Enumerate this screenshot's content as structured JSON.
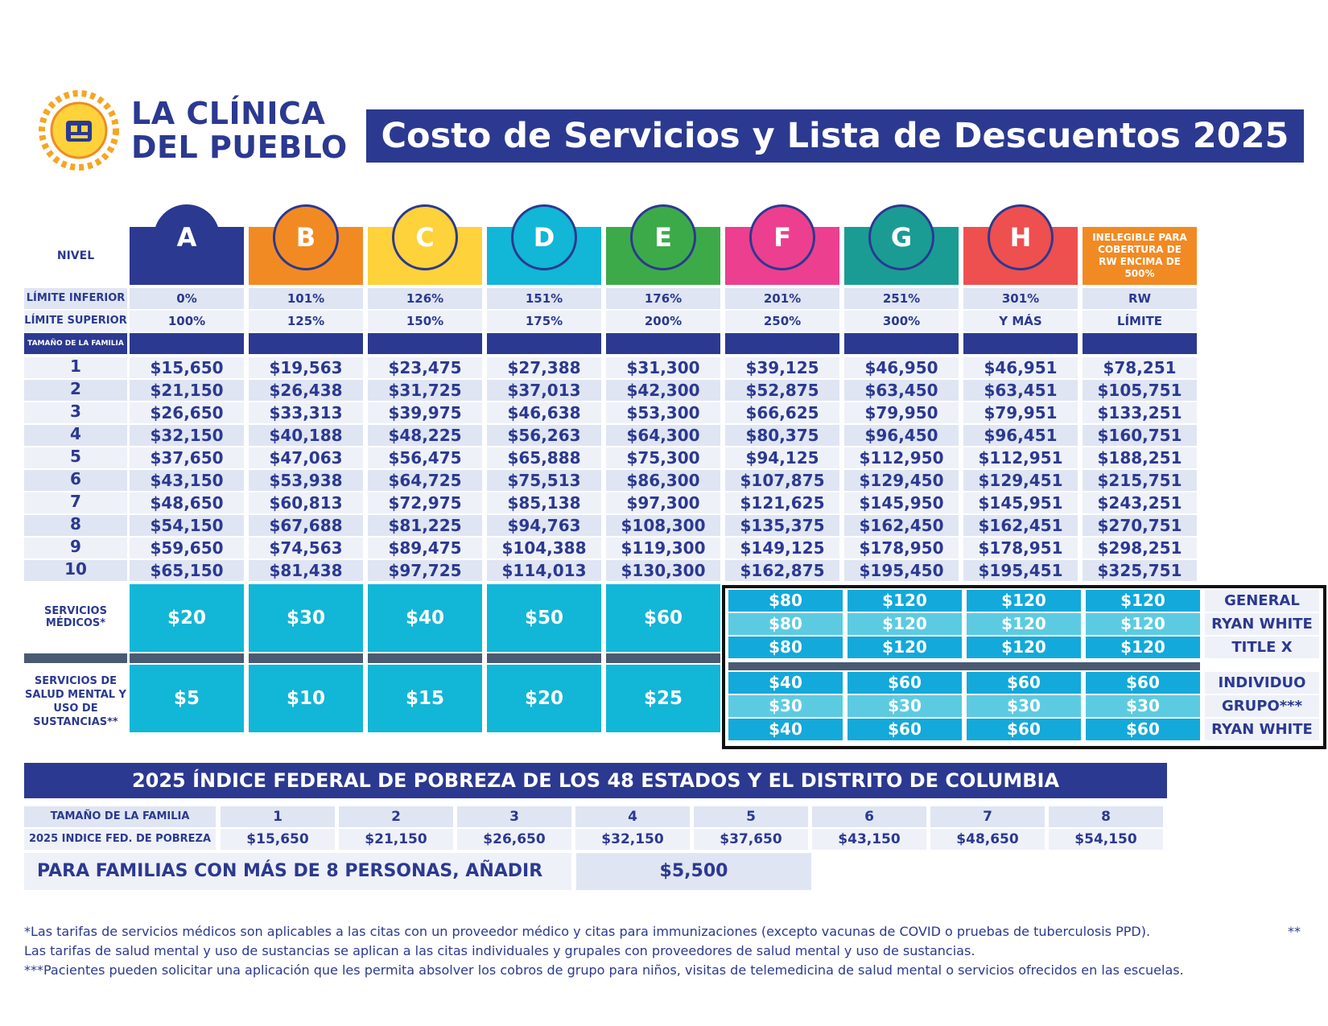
{
  "logo": {
    "line1": "LA CLÍNICA",
    "line2": "DEL PUEBLO"
  },
  "title": "Costo de Servicios y Lista de Descuentos 2025",
  "row_labels": {
    "nivel": "NIVEL",
    "limite_inferior": "LÍMITE INFERIOR",
    "limite_superior": "LÍMITE SUPERIOR",
    "tamano_familia": "TAMAÑO DE LA FAMILIA",
    "servicios_medicos": "SERVICIOS MÉDICOS*",
    "salud_mental": "SERVICIOS DE SALUD MENTAL Y USO DE SUSTANCIAS**"
  },
  "levels": [
    {
      "letter": "A",
      "color": "#2b3990",
      "lower": "0%",
      "upper": "100%"
    },
    {
      "letter": "B",
      "color": "#f28a23",
      "lower": "101%",
      "upper": "125%"
    },
    {
      "letter": "C",
      "color": "#fdd23a",
      "lower": "126%",
      "upper": "150%"
    },
    {
      "letter": "D",
      "color": "#12b6d7",
      "lower": "151%",
      "upper": "175%"
    },
    {
      "letter": "E",
      "color": "#3daa4a",
      "lower": "176%",
      "upper": "200%"
    },
    {
      "letter": "F",
      "color": "#ec3f8f",
      "lower": "201%",
      "upper": "250%"
    },
    {
      "letter": "G",
      "color": "#1a9c94",
      "lower": "251%",
      "upper": "300%"
    },
    {
      "letter": "H",
      "color": "#ee4f4f",
      "lower": "301%",
      "upper": "Y MÁS"
    },
    {
      "letter": "INELEGIBLE PARA COBERTURA DE RW ENCIMA DE 500%",
      "color": "#f28a23",
      "lower": "RW",
      "upper": "LÍMITE"
    }
  ],
  "family_sizes": [
    "1",
    "2",
    "3",
    "4",
    "5",
    "6",
    "7",
    "8",
    "9",
    "10"
  ],
  "income_table": [
    [
      "$15,650",
      "$19,563",
      "$23,475",
      "$27,388",
      "$31,300",
      "$39,125",
      "$46,950",
      "$46,951",
      "$78,251"
    ],
    [
      "$21,150",
      "$26,438",
      "$31,725",
      "$37,013",
      "$42,300",
      "$52,875",
      "$63,450",
      "$63,451",
      "$105,751"
    ],
    [
      "$26,650",
      "$33,313",
      "$39,975",
      "$46,638",
      "$53,300",
      "$66,625",
      "$79,950",
      "$79,951",
      "$133,251"
    ],
    [
      "$32,150",
      "$40,188",
      "$48,225",
      "$56,263",
      "$64,300",
      "$80,375",
      "$96,450",
      "$96,451",
      "$160,751"
    ],
    [
      "$37,650",
      "$47,063",
      "$56,475",
      "$65,888",
      "$75,300",
      "$94,125",
      "$112,950",
      "$112,951",
      "$188,251"
    ],
    [
      "$43,150",
      "$53,938",
      "$64,725",
      "$75,513",
      "$86,300",
      "$107,875",
      "$129,450",
      "$129,451",
      "$215,751"
    ],
    [
      "$48,650",
      "$60,813",
      "$72,975",
      "$85,138",
      "$97,300",
      "$121,625",
      "$145,950",
      "$145,951",
      "$243,251"
    ],
    [
      "$54,150",
      "$67,688",
      "$81,225",
      "$94,763",
      "$108,300",
      "$135,375",
      "$162,450",
      "$162,451",
      "$270,751"
    ],
    [
      "$59,650",
      "$74,563",
      "$89,475",
      "$104,388",
      "$119,300",
      "$149,125",
      "$178,950",
      "$178,951",
      "$298,251"
    ],
    [
      "$65,150",
      "$81,438",
      "$97,725",
      "$114,013",
      "$130,300",
      "$162,875",
      "$195,450",
      "$195,451",
      "$325,751"
    ]
  ],
  "medical_fees_AE": [
    "$20",
    "$30",
    "$40",
    "$50",
    "$60"
  ],
  "mental_fees_AE": [
    "$5",
    "$10",
    "$15",
    "$20",
    "$25"
  ],
  "rw_block": {
    "medical_rows": [
      {
        "label": "GENERAL",
        "values": [
          "$80",
          "$120",
          "$120",
          "$120"
        ]
      },
      {
        "label": "RYAN WHITE",
        "values": [
          "$80",
          "$120",
          "$120",
          "$120"
        ]
      },
      {
        "label": "TITLE X",
        "values": [
          "$80",
          "$120",
          "$120",
          "$120"
        ]
      }
    ],
    "mental_rows": [
      {
        "label": "INDIVIDUO",
        "values": [
          "$40",
          "$60",
          "$60",
          "$60"
        ]
      },
      {
        "label": "GRUPO***",
        "values": [
          "$30",
          "$30",
          "$30",
          "$30"
        ]
      },
      {
        "label": "RYAN WHITE",
        "values": [
          "$40",
          "$60",
          "$60",
          "$60"
        ]
      }
    ]
  },
  "fpl": {
    "title": "2025 ÍNDICE FEDERAL DE POBREZA DE LOS 48 ESTADOS Y EL DISTRITO DE COLUMBIA",
    "size_label": "TAMAÑO DE LA FAMILIA",
    "index_label": "2025 INDICE FED. DE POBREZA",
    "sizes": [
      "1",
      "2",
      "3",
      "4",
      "5",
      "6",
      "7",
      "8"
    ],
    "values": [
      "$15,650",
      "$21,150",
      "$26,650",
      "$32,150",
      "$37,650",
      "$43,150",
      "$48,650",
      "$54,150"
    ],
    "add_label": "PARA FAMILIAS CON MÁS DE 8 PERSONAS, AÑADIR",
    "add_value": "$5,500"
  },
  "footnotes": {
    "line1": "*Las tarifas de servicios médicos son aplicables a las citas con un proveedor médico y citas para immunizaciones (excepto vacunas de COVID o pruebas de tuberculosis PPD).",
    "line1_right": "**",
    "line2": "Las tarifas de salud mental y uso de sustancias se aplican a las citas individuales y grupales con proveedores de salud mental y uso de sustancias.",
    "line3": "***Pacientes pueden solicitar una aplicación que les permita absolver los cobros de grupo para niños, visitas de telemedicina de salud mental o servicios ofrecidos en las escuelas."
  }
}
